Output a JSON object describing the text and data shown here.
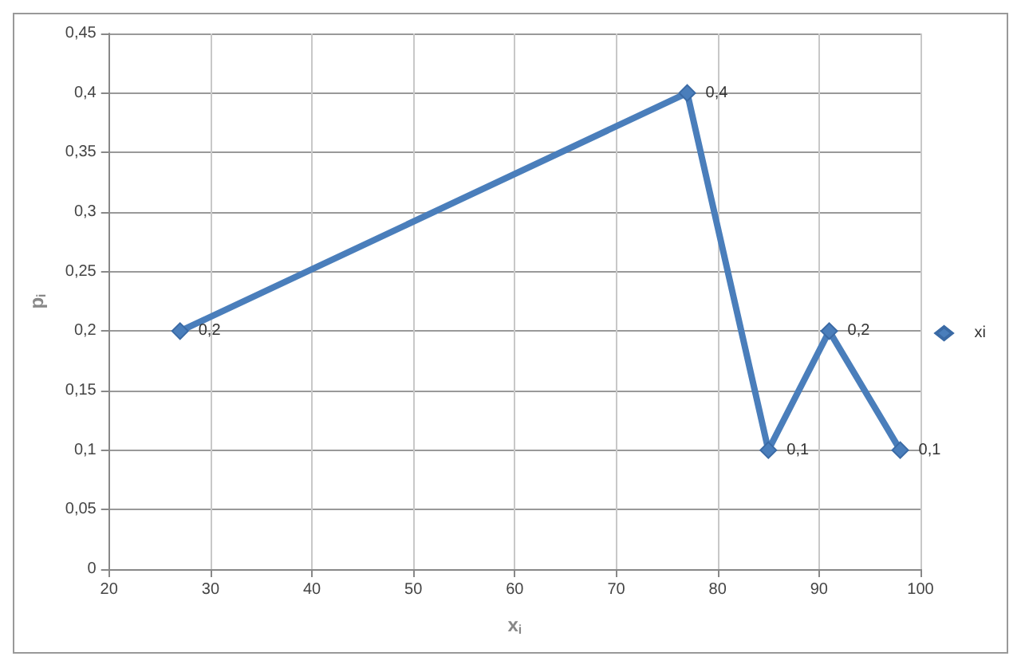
{
  "chart_data": {
    "type": "line",
    "xlabel": "x$_{i}$",
    "ylabel": "p$_{i}$",
    "x": [
      27,
      77,
      85,
      91,
      98
    ],
    "series": [
      {
        "name": "xi",
        "color": "#4a7ebb",
        "values": [
          0.2,
          0.4,
          0.1,
          0.2,
          0.1
        ],
        "value_labels": [
          "0,2",
          "0,4",
          "0,1",
          "0,2",
          "0,1"
        ]
      }
    ],
    "xlim": [
      20,
      100
    ],
    "xticks": [
      20,
      30,
      40,
      50,
      60,
      70,
      80,
      90,
      100
    ],
    "ylim": [
      0,
      0.45
    ],
    "yticks": [
      0,
      {
        "value": 0.05,
        "label": "0,05"
      },
      {
        "value": 0.1,
        "label": "0,1"
      },
      {
        "value": 0.15,
        "label": "0,15"
      },
      {
        "value": 0.2,
        "label": "0,2"
      },
      {
        "value": 0.25,
        "label": "0,25"
      },
      {
        "value": 0.3,
        "label": "0,3"
      },
      {
        "value": 0.35,
        "label": "0,35"
      },
      {
        "value": 0.4,
        "label": "0,4"
      },
      {
        "value": 0.45,
        "label": "0,45"
      }
    ],
    "grid": true,
    "legend": "right",
    "marker": "diamond",
    "line_style": "solid"
  }
}
